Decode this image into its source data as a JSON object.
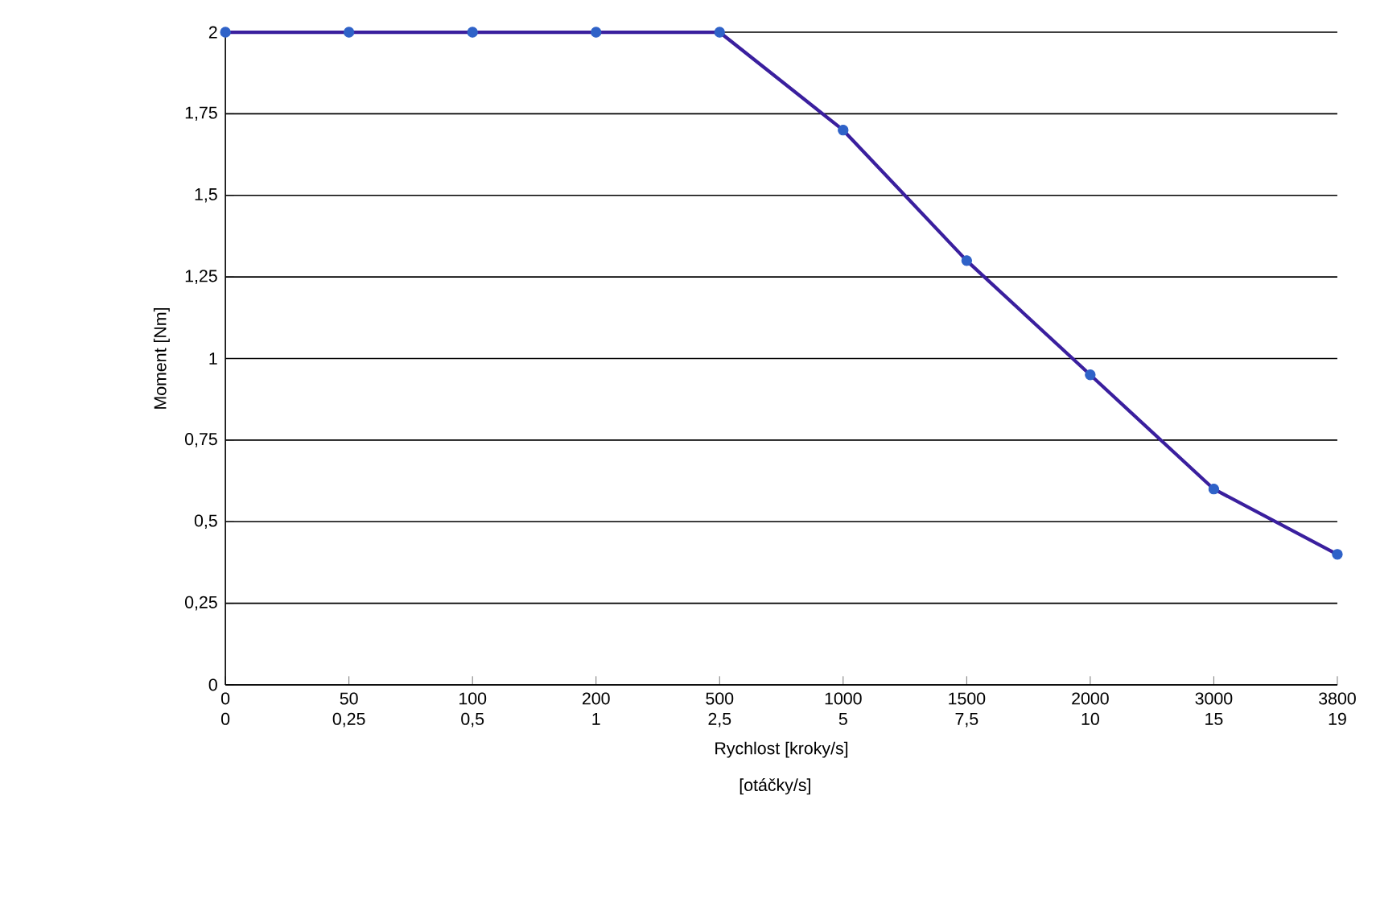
{
  "chart_data": {
    "type": "line",
    "xlabel": "Rychlost [kroky/s]",
    "ylabel": "Moment [Nm]",
    "categories": [
      "0",
      "50",
      "100",
      "200",
      "500",
      "1000",
      "1500",
      "2000",
      "3000",
      "3800"
    ],
    "series": [
      {
        "color": "#3a1f9e",
        "colors": [
          "#2f62c8",
          "#2f62c8",
          "#2f62c8",
          "#2f62c8",
          "#2f62c8",
          "#2f62c8",
          "#2f62c8",
          "#2f62c8",
          "#2f62c8",
          "#2f62c8"
        ],
        "values": [
          2,
          2,
          2,
          2,
          2,
          1.7,
          1.3,
          0.95,
          0.6,
          0.4
        ]
      }
    ],
    "marker": "circle",
    "line_style": "solid",
    "grid": "y",
    "ylim": [
      0,
      2
    ],
    "yticks": [
      0,
      {
        "value": 0.25,
        "label": "0,25"
      },
      {
        "value": 0.5,
        "label": "0,5"
      },
      {
        "value": 0.75,
        "label": "0,75"
      },
      1,
      {
        "value": 1.25,
        "label": "1,25"
      },
      {
        "value": 1.5,
        "label": "1,5"
      },
      {
        "value": 1.75,
        "label": "1,75"
      },
      2
    ],
    "annotations": [
      "0",
      "0,25",
      "0,5",
      "1",
      "2,5",
      "5",
      "7,5",
      "10",
      "15",
      "19",
      "[otáčky/s]"
    ]
  }
}
